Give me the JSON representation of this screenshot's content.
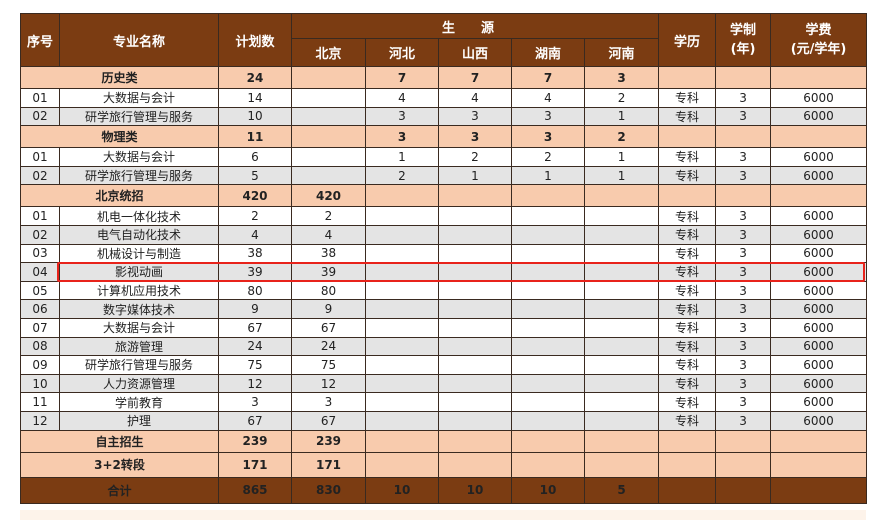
{
  "header": {
    "seq": "序号",
    "major": "专业名称",
    "plan": "计划数",
    "source": "生　　源",
    "provinces": [
      "北京",
      "河北",
      "山西",
      "湖南",
      "河南"
    ],
    "education": "学历",
    "duration": "学制\n(年)",
    "fee": "学费\n(元/学年)"
  },
  "rows": [
    {
      "type": "cat",
      "label": "历史类",
      "plan": "24",
      "counts": [
        "",
        "7",
        "7",
        "7",
        "3"
      ],
      "edu": "",
      "years": "",
      "fee": ""
    },
    {
      "type": "data",
      "seq": "01",
      "major": "大数据与会计",
      "plan": "14",
      "counts": [
        "",
        "4",
        "4",
        "4",
        "2"
      ],
      "edu": "专科",
      "years": "3",
      "fee": "6000"
    },
    {
      "type": "data",
      "seq": "02",
      "major": "研学旅行管理与服务",
      "plan": "10",
      "counts": [
        "",
        "3",
        "3",
        "3",
        "1"
      ],
      "edu": "专科",
      "years": "3",
      "fee": "6000"
    },
    {
      "type": "cat",
      "label": "物理类",
      "plan": "11",
      "counts": [
        "",
        "3",
        "3",
        "3",
        "2"
      ],
      "edu": "",
      "years": "",
      "fee": ""
    },
    {
      "type": "data",
      "seq": "01",
      "major": "大数据与会计",
      "plan": "6",
      "counts": [
        "",
        "1",
        "2",
        "2",
        "1"
      ],
      "edu": "专科",
      "years": "3",
      "fee": "6000"
    },
    {
      "type": "data",
      "seq": "02",
      "major": "研学旅行管理与服务",
      "plan": "5",
      "counts": [
        "",
        "2",
        "1",
        "1",
        "1"
      ],
      "edu": "专科",
      "years": "3",
      "fee": "6000"
    },
    {
      "type": "cat",
      "label": "北京统招",
      "plan": "420",
      "counts": [
        "420",
        "",
        "",
        "",
        ""
      ],
      "edu": "",
      "years": "",
      "fee": ""
    },
    {
      "type": "data",
      "seq": "01",
      "major": "机电一体化技术",
      "plan": "2",
      "counts": [
        "2",
        "",
        "",
        "",
        ""
      ],
      "edu": "专科",
      "years": "3",
      "fee": "6000"
    },
    {
      "type": "data",
      "seq": "02",
      "major": "电气自动化技术",
      "plan": "4",
      "counts": [
        "4",
        "",
        "",
        "",
        ""
      ],
      "edu": "专科",
      "years": "3",
      "fee": "6000"
    },
    {
      "type": "data",
      "seq": "03",
      "major": "机械设计与制造",
      "plan": "38",
      "counts": [
        "38",
        "",
        "",
        "",
        ""
      ],
      "edu": "专科",
      "years": "3",
      "fee": "6000"
    },
    {
      "type": "data",
      "seq": "04",
      "major": "影视动画",
      "plan": "39",
      "counts": [
        "39",
        "",
        "",
        "",
        ""
      ],
      "edu": "专科",
      "years": "3",
      "fee": "6000",
      "highlighted": true
    },
    {
      "type": "data",
      "seq": "05",
      "major": "计算机应用技术",
      "plan": "80",
      "counts": [
        "80",
        "",
        "",
        "",
        ""
      ],
      "edu": "专科",
      "years": "3",
      "fee": "6000"
    },
    {
      "type": "data",
      "seq": "06",
      "major": "数字媒体技术",
      "plan": "9",
      "counts": [
        "9",
        "",
        "",
        "",
        ""
      ],
      "edu": "专科",
      "years": "3",
      "fee": "6000"
    },
    {
      "type": "data",
      "seq": "07",
      "major": "大数据与会计",
      "plan": "67",
      "counts": [
        "67",
        "",
        "",
        "",
        ""
      ],
      "edu": "专科",
      "years": "3",
      "fee": "6000"
    },
    {
      "type": "data",
      "seq": "08",
      "major": "旅游管理",
      "plan": "24",
      "counts": [
        "24",
        "",
        "",
        "",
        ""
      ],
      "edu": "专科",
      "years": "3",
      "fee": "6000"
    },
    {
      "type": "data",
      "seq": "09",
      "major": "研学旅行管理与服务",
      "plan": "75",
      "counts": [
        "75",
        "",
        "",
        "",
        ""
      ],
      "edu": "专科",
      "years": "3",
      "fee": "6000"
    },
    {
      "type": "data",
      "seq": "10",
      "major": "人力资源管理",
      "plan": "12",
      "counts": [
        "12",
        "",
        "",
        "",
        ""
      ],
      "edu": "专科",
      "years": "3",
      "fee": "6000"
    },
    {
      "type": "data",
      "seq": "11",
      "major": "学前教育",
      "plan": "3",
      "counts": [
        "3",
        "",
        "",
        "",
        ""
      ],
      "edu": "专科",
      "years": "3",
      "fee": "6000"
    },
    {
      "type": "data",
      "seq": "12",
      "major": "护理",
      "plan": "67",
      "counts": [
        "67",
        "",
        "",
        "",
        ""
      ],
      "edu": "专科",
      "years": "3",
      "fee": "6000"
    },
    {
      "type": "cat",
      "label": "自主招生",
      "plan": "239",
      "counts": [
        "239",
        "",
        "",
        "",
        ""
      ],
      "edu": "",
      "years": "",
      "fee": ""
    },
    {
      "type": "cat",
      "label": "3+2转段",
      "plan": "171",
      "counts": [
        "171",
        "",
        "",
        "",
        ""
      ],
      "edu": "",
      "years": "",
      "fee": "",
      "tall": true
    },
    {
      "type": "total",
      "label": "合计",
      "plan": "865",
      "counts": [
        "830",
        "10",
        "10",
        "10",
        "5"
      ],
      "edu": "",
      "years": "",
      "fee": ""
    }
  ],
  "colors": {
    "header_bg": "#7b3c12",
    "category_bg": "#f8cbad",
    "stripe_bg": "#e4e4e4",
    "highlight_border": "#e8231b"
  }
}
